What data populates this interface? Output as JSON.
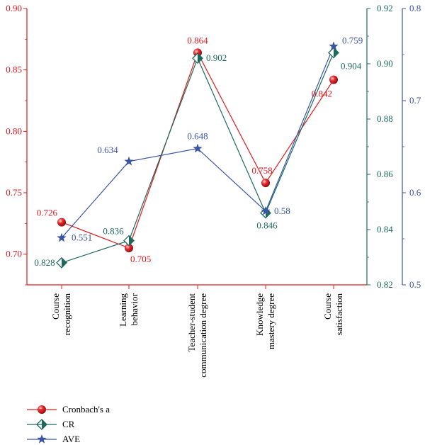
{
  "chart_data": {
    "type": "line",
    "categories": [
      [
        "Course",
        "recognition"
      ],
      [
        "Learning",
        "behavior"
      ],
      [
        "Teacher-student",
        "communication degree"
      ],
      [
        "Knowledge",
        "mastery degree"
      ],
      [
        "Course",
        "satisfaction"
      ]
    ],
    "axes": {
      "left": {
        "min": 0.675,
        "max": 0.9,
        "ticks": [
          "0.70",
          "0.75",
          "0.80",
          "0.85",
          "0.90"
        ],
        "color": "#e0191e"
      },
      "right1": {
        "min": 0.82,
        "max": 0.92,
        "ticks": [
          "0.82",
          "0.84",
          "0.86",
          "0.88",
          "0.90",
          "0.92"
        ],
        "color": "#1d6a5c"
      },
      "right2": {
        "min": 0.5,
        "max": 0.8,
        "ticks": [
          "0.5",
          "0.6",
          "0.7",
          "0.8"
        ],
        "color": "#3a55a4"
      }
    },
    "series": [
      {
        "name": "Cronbach's a",
        "axis": "left",
        "color": "#e0191e",
        "marker": "ball",
        "values": [
          0.726,
          0.705,
          0.864,
          0.758,
          0.842
        ],
        "labels": [
          "0.726",
          "0.705",
          "0.864",
          "0.758",
          "0.842"
        ]
      },
      {
        "name": "CR",
        "axis": "right1",
        "color": "#1d6a5c",
        "marker": "diamond",
        "values": [
          0.828,
          0.836,
          0.902,
          0.846,
          0.904
        ],
        "labels": [
          "0.828",
          "0.836",
          "0.902",
          "0.846",
          "0.904"
        ]
      },
      {
        "name": "AVE",
        "axis": "right2",
        "color": "#3a55a4",
        "marker": "star",
        "values": [
          0.551,
          0.634,
          0.648,
          0.58,
          0.759
        ],
        "labels": [
          "0.551",
          "0.634",
          "0.648",
          "0.58",
          "0.759"
        ]
      }
    ],
    "legend": "bottom-left",
    "grid": false
  }
}
